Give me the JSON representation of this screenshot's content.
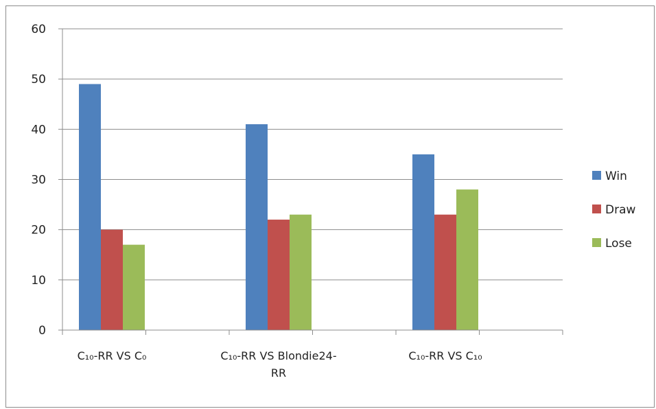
{
  "chart_data": {
    "type": "bar",
    "categories": [
      [
        "C₁₀-RR VS C₀"
      ],
      [
        "C₁₀-RR VS Blondie24-",
        "RR"
      ],
      [
        "C₁₀-RR VS C₁₀"
      ]
    ],
    "series": [
      {
        "name": "Win",
        "color": "#4f81bd",
        "values": [
          49,
          41,
          35
        ]
      },
      {
        "name": "Draw",
        "color": "#c0504d",
        "values": [
          20,
          22,
          23
        ]
      },
      {
        "name": "Lose",
        "color": "#9bbb59",
        "values": [
          17,
          23,
          28
        ]
      }
    ],
    "ylim": [
      0,
      60
    ],
    "yticks": [
      0,
      10,
      20,
      30,
      40,
      50,
      60
    ],
    "grid": true,
    "legend_position": "right"
  }
}
